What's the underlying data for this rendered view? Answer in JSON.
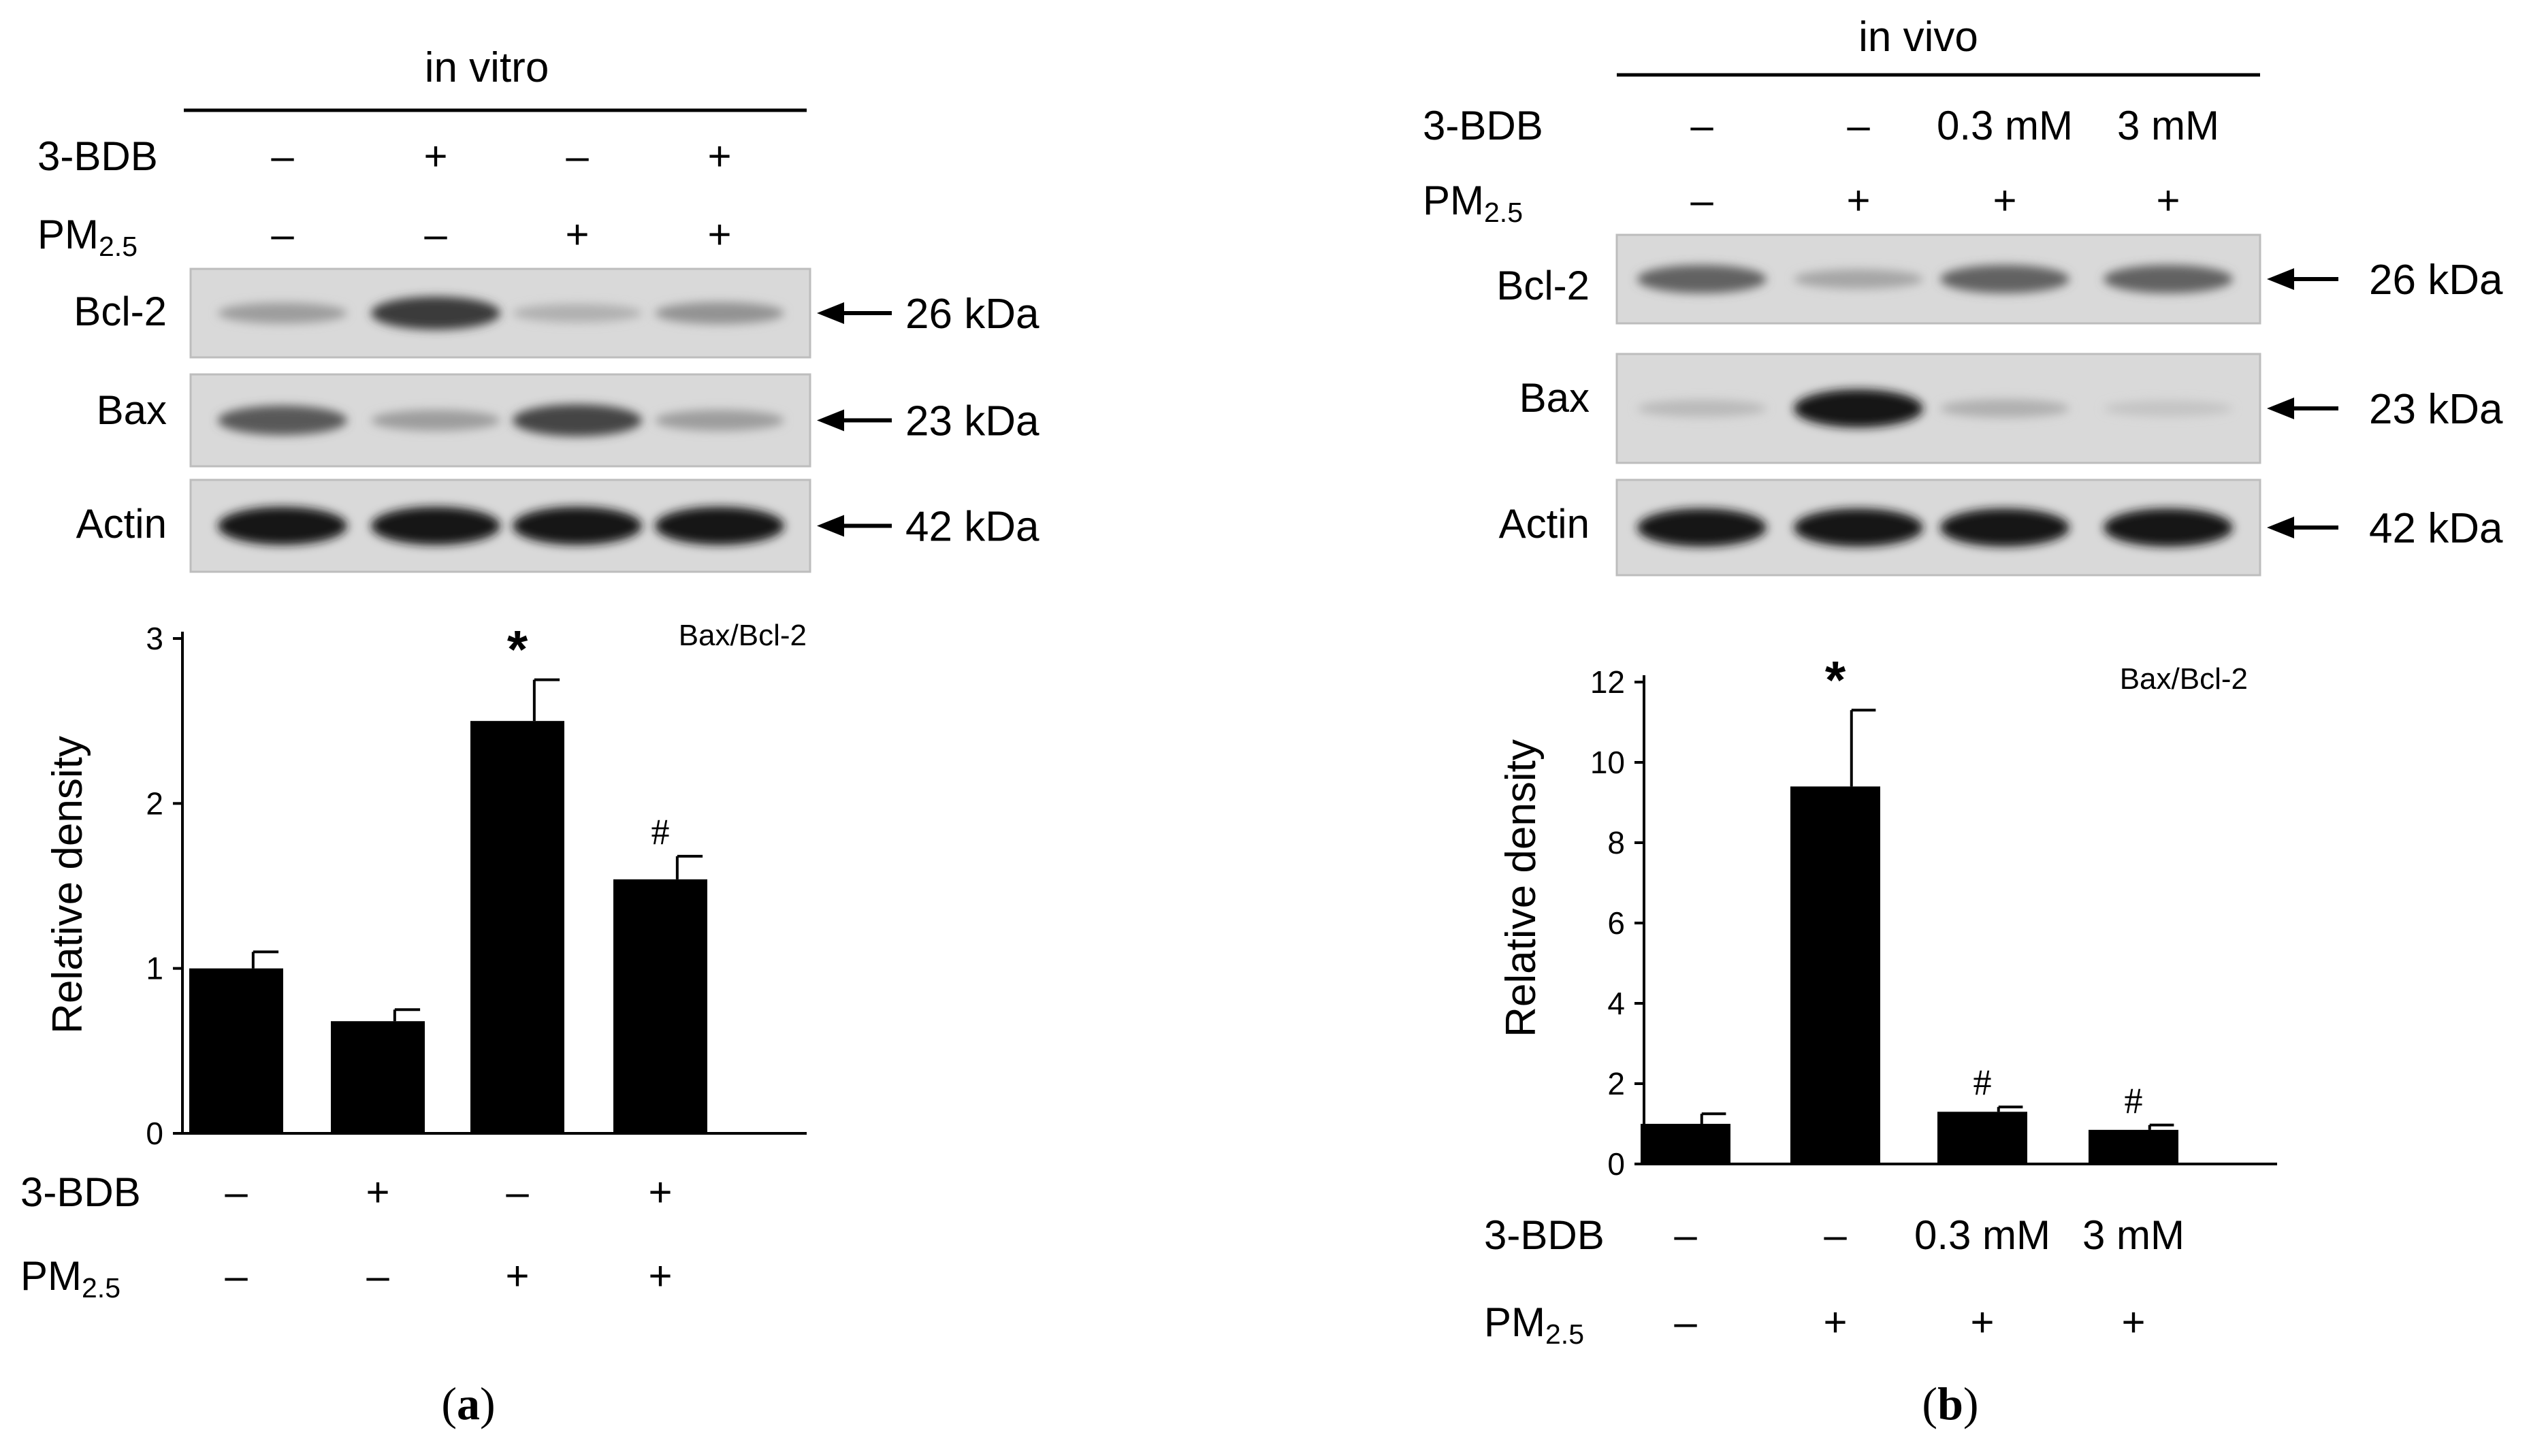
{
  "panels": [
    {
      "id": "a",
      "caption": "(a)",
      "caption_letter": "a",
      "condition": "in vitro",
      "rows": [
        {
          "label": "3-BDB",
          "values": [
            "–",
            "+",
            "–",
            "+"
          ]
        },
        {
          "label": "PM",
          "sub": "2.5",
          "values": [
            "–",
            "–",
            "+",
            "+"
          ]
        }
      ],
      "blots": [
        {
          "label": "Bcl-2",
          "size": "26 kDa",
          "intensity": [
            0.3,
            0.8,
            0.2,
            0.35
          ]
        },
        {
          "label": "Bax",
          "size": "23 kDa",
          "intensity": [
            0.65,
            0.3,
            0.75,
            0.3
          ]
        },
        {
          "label": "Actin",
          "size": "42 kDa",
          "intensity": [
            1.0,
            1.0,
            1.0,
            1.0
          ]
        }
      ]
    },
    {
      "id": "b",
      "caption": "(b)",
      "caption_letter": "b",
      "condition": "in vivo",
      "rows": [
        {
          "label": "3-BDB",
          "values": [
            "–",
            "–",
            "0.3 mM",
            "3 mM"
          ]
        },
        {
          "label": "PM",
          "sub": "2.5",
          "values": [
            "–",
            "+",
            "+",
            "+"
          ]
        }
      ],
      "blots": [
        {
          "label": "Bcl-2",
          "size": "26 kDa",
          "intensity": [
            0.6,
            0.25,
            0.6,
            0.6
          ]
        },
        {
          "label": "Bax",
          "size": "23 kDa",
          "intensity": [
            0.15,
            1.0,
            0.2,
            0.1
          ]
        },
        {
          "label": "Actin",
          "size": "42 kDa",
          "intensity": [
            1.0,
            1.0,
            1.0,
            1.0
          ]
        }
      ]
    }
  ],
  "chart_data": [
    {
      "type": "bar",
      "panel": "a",
      "annotation": "Bax/Bcl-2",
      "ylabel": "Relative density",
      "ylim": [
        0,
        3
      ],
      "yticks": [
        0,
        1,
        2,
        3
      ],
      "categories": [
        "1",
        "2",
        "3",
        "4"
      ],
      "values": [
        1.0,
        0.68,
        2.5,
        1.54
      ],
      "errors": [
        0.1,
        0.07,
        0.25,
        0.14
      ],
      "marks": [
        "",
        "",
        "*",
        "#"
      ],
      "bar_color": "#000000",
      "x_rows": [
        {
          "label": "3-BDB",
          "values": [
            "–",
            "+",
            "–",
            "+"
          ]
        },
        {
          "label": "PM",
          "sub": "2.5",
          "values": [
            "–",
            "–",
            "+",
            "+"
          ]
        }
      ]
    },
    {
      "type": "bar",
      "panel": "b",
      "annotation": "Bax/Bcl-2",
      "ylabel": "Relative density",
      "ylim": [
        0,
        12
      ],
      "yticks": [
        0,
        2,
        4,
        6,
        8,
        10,
        12
      ],
      "categories": [
        "1",
        "2",
        "3",
        "4"
      ],
      "values": [
        1.0,
        9.4,
        1.3,
        0.85
      ],
      "errors": [
        0.25,
        1.9,
        0.12,
        0.12
      ],
      "marks": [
        "",
        "*",
        "#",
        "#"
      ],
      "bar_color": "#000000",
      "x_rows": [
        {
          "label": "3-BDB",
          "values": [
            "–",
            "–",
            "0.3 mM",
            "3 mM"
          ]
        },
        {
          "label": "PM",
          "sub": "2.5",
          "values": [
            "–",
            "+",
            "+",
            "+"
          ]
        }
      ]
    }
  ]
}
